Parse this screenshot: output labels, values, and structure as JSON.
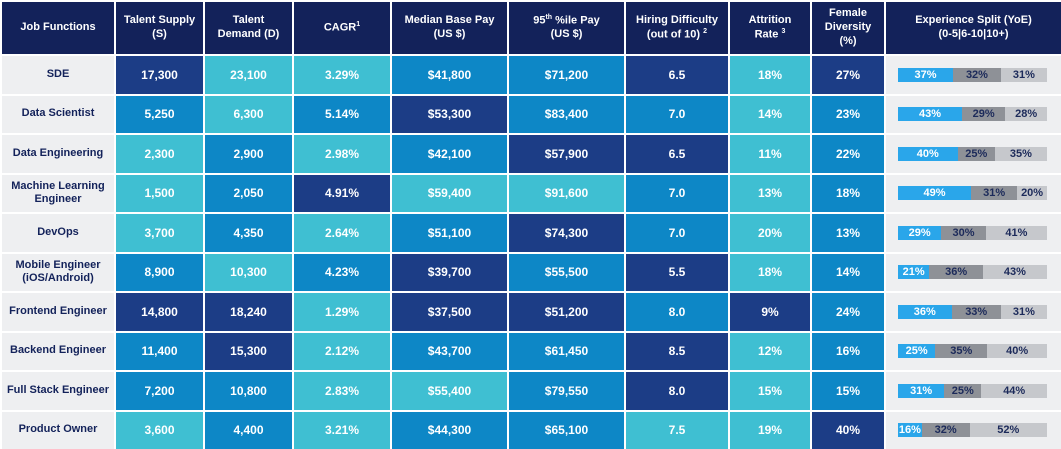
{
  "headers": {
    "job": "Job Functions",
    "supply_l1": "Talent Supply",
    "supply_l2": "(S)",
    "demand_l1": "Talent",
    "demand_l2": "Demand (D)",
    "cagr": "CAGR",
    "cagr_note": "1",
    "median_l1": "Median Base Pay",
    "median_l2": "(US $)",
    "p95_prefix": "95",
    "p95_sup": "th",
    "p95_l1": " %ile Pay",
    "p95_l2": "(US $)",
    "hiring_l1": "Hiring Difficulty",
    "hiring_l2": "(out of 10)",
    "hiring_note": "2",
    "attr_l1": "Attrition",
    "attr_l2": "Rate",
    "attr_note": "3",
    "female_l1": "Female",
    "female_l2": "Diversity",
    "female_l3": "(%)",
    "exp_l1": "Experience Split (YoE)",
    "exp_l2": "(0-5|6-10|10+)"
  },
  "colors": {
    "navy": "#1c3d86",
    "blue": "#0d87c6",
    "teal": "#3fbfd2",
    "header": "#13225a",
    "exp_a": "#2aa6ea",
    "exp_b": "#8e9197",
    "exp_c": "#c6c8cc"
  },
  "rows": [
    {
      "job": "SDE",
      "supply": "17,300",
      "demand": "23,100",
      "cagr": "3.29%",
      "median": "$41,800",
      "p95": "$71,200",
      "hiring": "6.5",
      "attrition": "18%",
      "female": "27%",
      "exp": [
        "37%",
        "32%",
        "31%"
      ],
      "exp_frac": [
        0.37,
        0.32,
        0.31
      ]
    },
    {
      "job": "Data Scientist",
      "supply": "5,250",
      "demand": "6,300",
      "cagr": "5.14%",
      "median": "$53,300",
      "p95": "$83,400",
      "hiring": "7.0",
      "attrition": "14%",
      "female": "23%",
      "exp": [
        "43%",
        "29%",
        "28%"
      ],
      "exp_frac": [
        0.43,
        0.29,
        0.28
      ]
    },
    {
      "job": "Data Engineering",
      "supply": "2,300",
      "demand": "2,900",
      "cagr": "2.98%",
      "median": "$42,100",
      "p95": "$57,900",
      "hiring": "6.5",
      "attrition": "11%",
      "female": "22%",
      "exp": [
        "40%",
        "25%",
        "35%"
      ],
      "exp_frac": [
        0.4,
        0.25,
        0.35
      ]
    },
    {
      "job": "Machine Learning Engineer",
      "supply": "1,500",
      "demand": "2,050",
      "cagr": "4.91%",
      "median": "$59,400",
      "p95": "$91,600",
      "hiring": "7.0",
      "attrition": "13%",
      "female": "18%",
      "exp": [
        "49%",
        "31%",
        "20%"
      ],
      "exp_frac": [
        0.49,
        0.31,
        0.2
      ]
    },
    {
      "job": "DevOps",
      "supply": "3,700",
      "demand": "4,350",
      "cagr": "2.64%",
      "median": "$51,100",
      "p95": "$74,300",
      "hiring": "7.0",
      "attrition": "20%",
      "female": "13%",
      "exp": [
        "29%",
        "30%",
        "41%"
      ],
      "exp_frac": [
        0.29,
        0.3,
        0.41
      ]
    },
    {
      "job": "Mobile Engineer (iOS/Android)",
      "supply": "8,900",
      "demand": "10,300",
      "cagr": "4.23%",
      "median": "$39,700",
      "p95": "$55,500",
      "hiring": "5.5",
      "attrition": "18%",
      "female": "14%",
      "exp": [
        "21%",
        "36%",
        "43%"
      ],
      "exp_frac": [
        0.21,
        0.36,
        0.43
      ]
    },
    {
      "job": "Frontend Engineer",
      "supply": "14,800",
      "demand": "18,240",
      "cagr": "1.29%",
      "median": "$37,500",
      "p95": "$51,200",
      "hiring": "8.0",
      "attrition": "9%",
      "female": "24%",
      "exp": [
        "36%",
        "33%",
        "31%"
      ],
      "exp_frac": [
        0.36,
        0.33,
        0.31
      ]
    },
    {
      "job": "Backend Engineer",
      "supply": "11,400",
      "demand": "15,300",
      "cagr": "2.12%",
      "median": "$43,700",
      "p95": "$61,450",
      "hiring": "8.5",
      "attrition": "12%",
      "female": "16%",
      "exp": [
        "25%",
        "35%",
        "40%"
      ],
      "exp_frac": [
        0.25,
        0.35,
        0.4
      ]
    },
    {
      "job": "Full Stack Engineer",
      "supply": "7,200",
      "demand": "10,800",
      "cagr": "2.83%",
      "median": "$55,400",
      "p95": "$79,550",
      "hiring": "8.0",
      "attrition": "15%",
      "female": "15%",
      "exp": [
        "31%",
        "25%",
        "44%"
      ],
      "exp_frac": [
        0.31,
        0.25,
        0.44
      ]
    },
    {
      "job": "Product Owner",
      "supply": "3,600",
      "demand": "4,400",
      "cagr": "3.21%",
      "median": "$44,300",
      "p95": "$65,100",
      "hiring": "7.5",
      "attrition": "19%",
      "female": "40%",
      "exp": [
        "16%",
        "32%",
        "52%"
      ],
      "exp_frac": [
        0.16,
        0.32,
        0.52
      ]
    }
  ]
}
